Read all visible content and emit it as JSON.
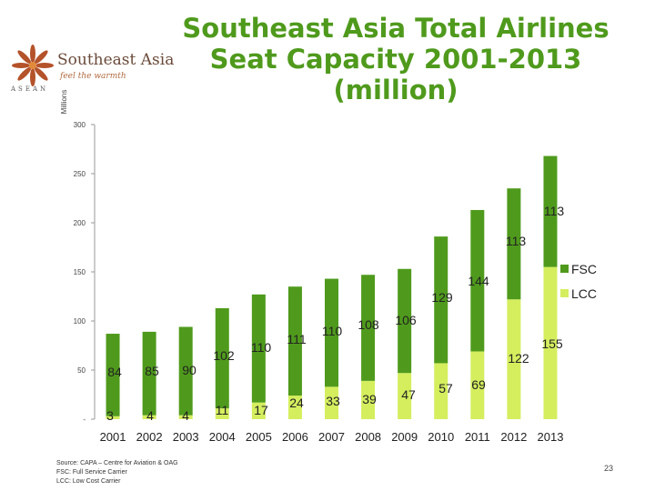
{
  "header": {
    "title_lines": [
      "Southeast Asia Total Airlines",
      "Seat Capacity 2001-2013",
      "(million)"
    ]
  },
  "logo": {
    "name": "Southeast Asia",
    "tagline": "feel the warmth",
    "org": "ASEAN"
  },
  "chart_data": {
    "type": "bar",
    "stacked": true,
    "categories": [
      "2001",
      "2002",
      "2003",
      "2004",
      "2005",
      "2006",
      "2007",
      "2008",
      "2009",
      "2010",
      "2011",
      "2012",
      "2013"
    ],
    "series": [
      {
        "name": "LCC",
        "color": "#d4ee5e",
        "values": [
          3,
          4,
          4,
          11,
          17,
          24,
          33,
          39,
          47,
          57,
          69,
          122,
          155
        ]
      },
      {
        "name": "FSC",
        "color": "#4f9a1c",
        "values": [
          84,
          85,
          90,
          102,
          110,
          111,
          110,
          108,
          106,
          129,
          144,
          113,
          113
        ]
      }
    ],
    "ylabel": "Millions",
    "ylim": [
      0,
      300
    ],
    "yticks": [
      0,
      50,
      100,
      150,
      200,
      250,
      300
    ],
    "ytick_labels": [
      "-",
      "50",
      "100",
      "150",
      "200",
      "250",
      "300"
    ],
    "legend": [
      "FSC",
      "LCC"
    ],
    "legend_position": "right"
  },
  "source": {
    "lines": [
      "Source: CAPA – Centre for Aviation & OAG",
      "FSC: Full Service Carrier",
      "LCC: Low Cost Carrier"
    ]
  },
  "page_number": "23"
}
